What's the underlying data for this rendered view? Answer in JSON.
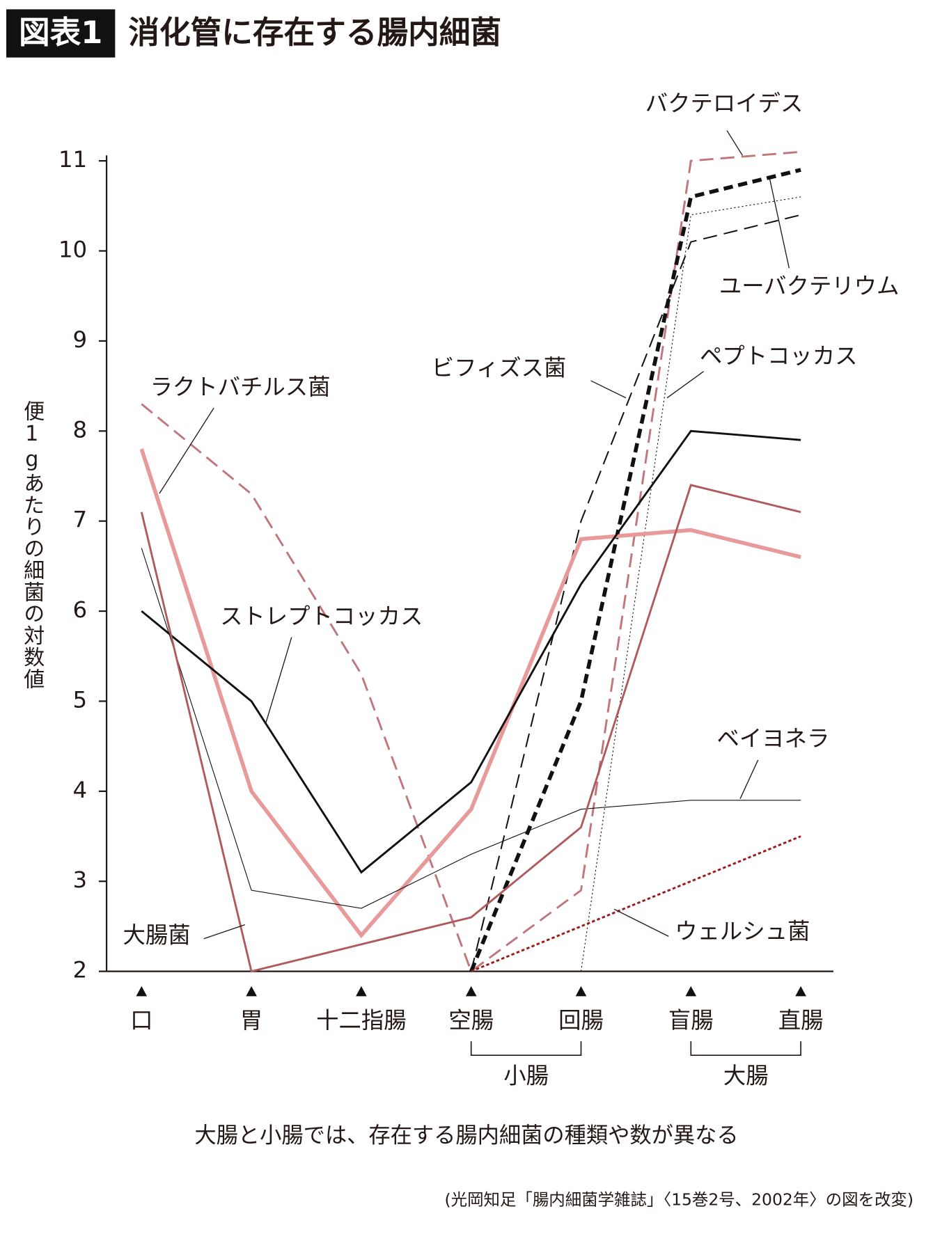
{
  "chart_data": {
    "type": "line",
    "label": "図表1",
    "title": "消化管に存在する腸内細菌",
    "ylabel": "便1gあたりの細菌の対数値",
    "categories": [
      "口",
      "胃",
      "十二指腸",
      "空腸",
      "回腸",
      "盲腸",
      "直腸"
    ],
    "groups": [
      {
        "label": "小腸",
        "categories": [
          "空腸",
          "回腸"
        ]
      },
      {
        "label": "大腸",
        "categories": [
          "盲腸",
          "直腸"
        ]
      }
    ],
    "ylim": [
      2,
      11
    ],
    "yticks": [
      2,
      3,
      4,
      5,
      6,
      7,
      8,
      9,
      10,
      11
    ],
    "series": [
      {
        "name": "バクテロイデス",
        "color": "#c0767c",
        "style": "dashed",
        "weight": "normal",
        "values": [
          8.3,
          7.3,
          5.3,
          2,
          2.9,
          11.0,
          11.1
        ]
      },
      {
        "name": "ユーバクテリウム",
        "color": "#111111",
        "style": "dashed",
        "weight": "thick",
        "values": [
          null,
          null,
          null,
          2,
          5.0,
          10.6,
          10.9
        ]
      },
      {
        "name": "ビフィズス菌",
        "color": "#111111",
        "style": "dashed",
        "weight": "thin",
        "values": [
          null,
          null,
          null,
          2,
          7.0,
          10.1,
          10.4
        ]
      },
      {
        "name": "ペプトコッカス",
        "color": "#111111",
        "style": "dotted",
        "weight": "hair",
        "values": [
          null,
          null,
          null,
          null,
          2,
          10.4,
          10.6
        ]
      },
      {
        "name": "ラクトバチルス菌",
        "color": "#e89a9a",
        "style": "solid",
        "weight": "thick",
        "values": [
          7.8,
          4.0,
          2.4,
          3.8,
          6.8,
          6.9,
          6.6
        ]
      },
      {
        "name": "ストレプトコッカス",
        "color": "#111111",
        "style": "solid",
        "weight": "normal",
        "values": [
          6.0,
          5.0,
          3.1,
          4.1,
          6.3,
          8.0,
          7.9
        ]
      },
      {
        "name": "ベイヨネラ",
        "color": "#111111",
        "style": "solid",
        "weight": "hair",
        "values": [
          6.7,
          2.9,
          2.7,
          3.3,
          3.8,
          3.9,
          3.9
        ]
      },
      {
        "name": "大腸菌",
        "color": "#b05a5f",
        "style": "solid",
        "weight": "normal",
        "values": [
          7.1,
          2.0,
          2.3,
          2.6,
          3.6,
          7.4,
          7.1
        ]
      },
      {
        "name": "ウェルシュ菌",
        "color": "#9b1b1b",
        "style": "dotted",
        "weight": "normal",
        "values": [
          null,
          null,
          null,
          2,
          2.5,
          3.0,
          3.5
        ]
      }
    ],
    "caption": "大腸と小腸では、存在する腸内細菌の種類や数が異なる",
    "note": "(光岡知足「腸内細菌学雑誌」〈15巻2号、2002年〉の図を改変)"
  }
}
